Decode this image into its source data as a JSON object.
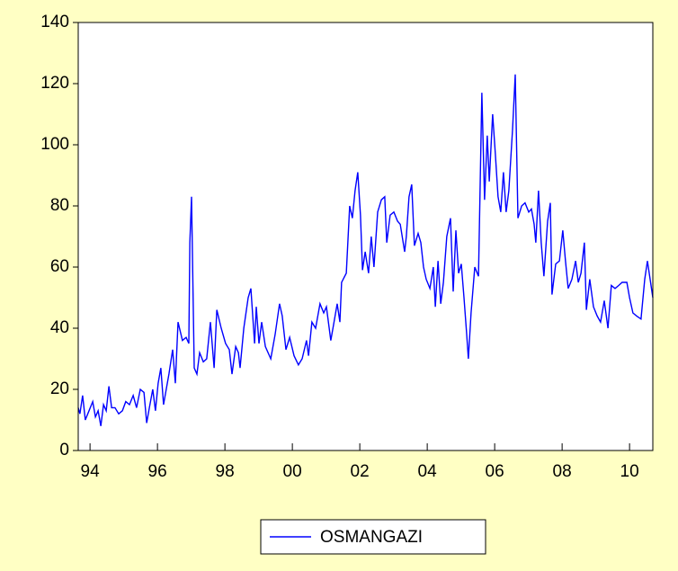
{
  "chart_data": {
    "type": "line",
    "series": [
      {
        "name": "OSMANGAZI",
        "color": "#0000ff",
        "x": [
          1993.65,
          1993.7,
          1993.78,
          1993.86,
          1993.97,
          1994.08,
          1994.16,
          1994.24,
          1994.32,
          1994.4,
          1994.48,
          1994.56,
          1994.64,
          1994.74,
          1994.85,
          1994.96,
          1995.06,
          1995.17,
          1995.28,
          1995.38,
          1995.49,
          1995.6,
          1995.68,
          1995.76,
          1995.86,
          1995.94,
          1996.02,
          1996.1,
          1996.18,
          1996.34,
          1996.45,
          1996.53,
          1996.61,
          1996.74,
          1996.85,
          1996.93,
          1996.96,
          1997.01,
          1997.09,
          1997.17,
          1997.25,
          1997.36,
          1997.46,
          1997.57,
          1997.68,
          1997.76,
          1997.89,
          1998.02,
          1998.13,
          1998.21,
          1998.32,
          1998.4,
          1998.45,
          1998.56,
          1998.69,
          1998.77,
          1998.88,
          1998.93,
          1999.01,
          1999.09,
          1999.2,
          1999.36,
          1999.49,
          1999.62,
          1999.7,
          1999.81,
          1999.92,
          2000.05,
          2000.18,
          2000.29,
          2000.42,
          2000.48,
          2000.58,
          2000.69,
          2000.82,
          2000.93,
          2001.01,
          2001.14,
          2001.22,
          2001.33,
          2001.41,
          2001.46,
          2001.6,
          2001.7,
          2001.78,
          2001.86,
          2001.94,
          2002.02,
          2002.08,
          2002.16,
          2002.26,
          2002.34,
          2002.42,
          2002.53,
          2002.64,
          2002.74,
          2002.8,
          2002.9,
          2003.01,
          2003.12,
          2003.2,
          2003.33,
          2003.38,
          2003.46,
          2003.54,
          2003.62,
          2003.73,
          2003.81,
          2003.89,
          2003.97,
          2004.08,
          2004.18,
          2004.24,
          2004.32,
          2004.4,
          2004.48,
          2004.58,
          2004.69,
          2004.77,
          2004.85,
          2004.93,
          2005.01,
          2005.09,
          2005.17,
          2005.22,
          2005.3,
          2005.41,
          2005.52,
          2005.62,
          2005.7,
          2005.78,
          2005.84,
          2005.94,
          2006.02,
          2006.1,
          2006.18,
          2006.26,
          2006.34,
          2006.42,
          2006.53,
          2006.61,
          2006.69,
          2006.8,
          2006.9,
          2007.01,
          2007.09,
          2007.17,
          2007.22,
          2007.3,
          2007.38,
          2007.46,
          2007.57,
          2007.65,
          2007.7,
          2007.81,
          2007.92,
          2008.02,
          2008.1,
          2008.18,
          2008.29,
          2008.4,
          2008.48,
          2008.56,
          2008.66,
          2008.72,
          2008.82,
          2008.93,
          2009.04,
          2009.14,
          2009.25,
          2009.36,
          2009.46,
          2009.57,
          2009.68,
          2009.78,
          2009.92,
          2010.0,
          2010.1,
          2010.21,
          2010.34,
          2010.45,
          2010.53,
          2010.61,
          2010.69
        ],
        "values": [
          14,
          12,
          18,
          10,
          13,
          16,
          11,
          13,
          8,
          15,
          13,
          21,
          14,
          14,
          12,
          13,
          16,
          15,
          18,
          14,
          20,
          19,
          9,
          14,
          20,
          13,
          22,
          27,
          15,
          25,
          33,
          22,
          42,
          36,
          37,
          35,
          68,
          83,
          27,
          25,
          32,
          29,
          30,
          42,
          27,
          46,
          40,
          35,
          33,
          25,
          34,
          32,
          27,
          40,
          50,
          53,
          35,
          47,
          35,
          42,
          34,
          30,
          38,
          48,
          44,
          33,
          37,
          31,
          28,
          30,
          36,
          31,
          42,
          40,
          48,
          45,
          47,
          36,
          41,
          48,
          42,
          55,
          58,
          80,
          76,
          85,
          91,
          77,
          59,
          65,
          58,
          70,
          60,
          78,
          82,
          83,
          68,
          77,
          78,
          75,
          74,
          65,
          70,
          83,
          87,
          67,
          71,
          68,
          60,
          56,
          53,
          60,
          47,
          62,
          48,
          55,
          70,
          76,
          52,
          72,
          58,
          61,
          50,
          38,
          30,
          45,
          60,
          57,
          117,
          82,
          103,
          88,
          110,
          97,
          83,
          78,
          91,
          78,
          85,
          105,
          123,
          76,
          80,
          81,
          78,
          79,
          74,
          68,
          85,
          68,
          57,
          75,
          81,
          51,
          61,
          62,
          72,
          62,
          53,
          56,
          62,
          55,
          58,
          68,
          46,
          56,
          47,
          44,
          42,
          49,
          40,
          54,
          53,
          54,
          55,
          55,
          50,
          45,
          44,
          43,
          56,
          62,
          56,
          50
        ]
      }
    ],
    "xlim": [
      1993.65,
      2010.69
    ],
    "xticks": [
      {
        "value": 1994,
        "label": "94"
      },
      {
        "value": 1996,
        "label": "96"
      },
      {
        "value": 1998,
        "label": "98"
      },
      {
        "value": 2000,
        "label": "00"
      },
      {
        "value": 2002,
        "label": "02"
      },
      {
        "value": 2004,
        "label": "04"
      },
      {
        "value": 2006,
        "label": "06"
      },
      {
        "value": 2008,
        "label": "08"
      },
      {
        "value": 2010,
        "label": "10"
      }
    ],
    "ylim": [
      0,
      140
    ],
    "yticks": [
      0,
      20,
      40,
      60,
      80,
      100,
      120,
      140
    ],
    "legend": "bottom"
  }
}
